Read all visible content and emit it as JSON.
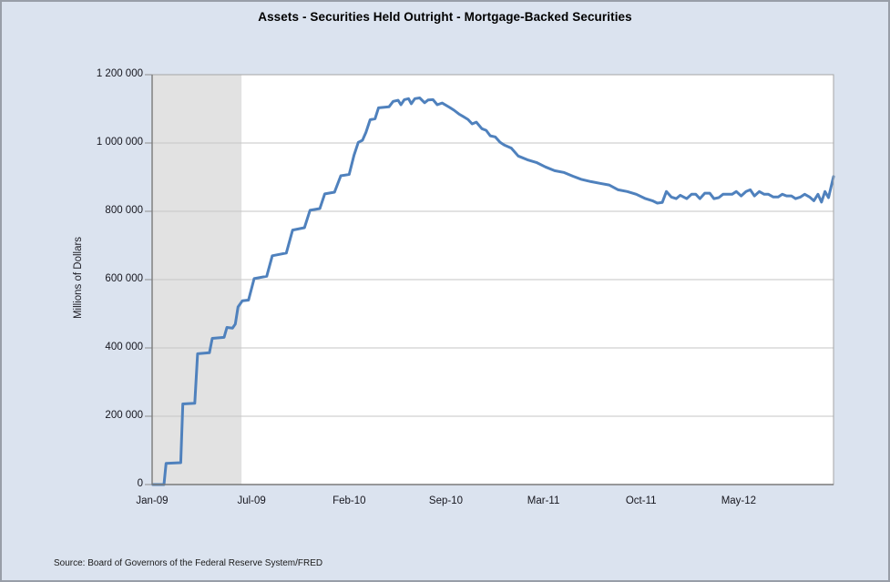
{
  "window": {
    "background_color": "#dbe3ef",
    "border_color": "#989ea8"
  },
  "source": {
    "text": "Source: Board of Governors of the Federal Reserve System/FRED"
  },
  "colors": {
    "series_line": "#4f81bd",
    "recession_band": "#e2e2e2",
    "gridline": "#c5c5c5",
    "plot_border": "#a5a5a5",
    "axis_line": "#7a7a7a",
    "tick_mark": "#8c8c8c",
    "plot_background": "#ffffff",
    "text": "#16161e"
  },
  "chart_data": {
    "type": "line",
    "title": "Assets - Securities Held Outright - Mortgage-Backed Securities",
    "xlabel": "",
    "ylabel": "Millions of Dollars",
    "ylim": [
      0,
      1200000
    ],
    "y_ticks": [
      0,
      200000,
      400000,
      600000,
      800000,
      1000000,
      1200000
    ],
    "y_tick_labels": [
      "0",
      "200 000",
      "400 000",
      "600 000",
      "800 000",
      "1 000 000",
      "1 200 000"
    ],
    "x_ticks": [
      {
        "pos": 0.0,
        "label": "Jan-09"
      },
      {
        "pos": 0.1459,
        "label": "Jul-09"
      },
      {
        "pos": 0.2892,
        "label": "Feb-10"
      },
      {
        "pos": 0.4311,
        "label": "Sep-10"
      },
      {
        "pos": 0.5743,
        "label": "Mar-11"
      },
      {
        "pos": 0.7175,
        "label": "Oct-11"
      },
      {
        "pos": 0.8608,
        "label": "May-12"
      }
    ],
    "x_axis_note": "weekly observations Jan-2009 through Dec-2012; pos = fraction of x-axis width",
    "grid": "horizontal",
    "legend": "none",
    "recession_band": {
      "pos_start": 0.0,
      "pos_end": 0.1312
    },
    "series": [
      {
        "name": "Mortgage-Backed Securities (millions of dollars)",
        "points": [
          [
            0.001,
            0
          ],
          [
            0.0174,
            0
          ],
          [
            0.0205,
            62000
          ],
          [
            0.042,
            64000
          ],
          [
            0.0451,
            236000
          ],
          [
            0.0626,
            238000
          ],
          [
            0.0667,
            383000
          ],
          [
            0.0841,
            386000
          ],
          [
            0.0882,
            428000
          ],
          [
            0.1056,
            431000
          ],
          [
            0.1097,
            460000
          ],
          [
            0.1179,
            458000
          ],
          [
            0.122,
            470000
          ],
          [
            0.1261,
            520000
          ],
          [
            0.1323,
            538000
          ],
          [
            0.1415,
            540000
          ],
          [
            0.1497,
            603000
          ],
          [
            0.1682,
            610000
          ],
          [
            0.1764,
            670000
          ],
          [
            0.1969,
            678000
          ],
          [
            0.2061,
            745000
          ],
          [
            0.2235,
            752000
          ],
          [
            0.2317,
            803000
          ],
          [
            0.2461,
            808000
          ],
          [
            0.2533,
            851000
          ],
          [
            0.2676,
            856000
          ],
          [
            0.2769,
            904000
          ],
          [
            0.2892,
            908000
          ],
          [
            0.2963,
            964000
          ],
          [
            0.3025,
            1002000
          ],
          [
            0.3087,
            1008000
          ],
          [
            0.3138,
            1031000
          ],
          [
            0.3199,
            1068000
          ],
          [
            0.3271,
            1071000
          ],
          [
            0.3322,
            1103000
          ],
          [
            0.3476,
            1106000
          ],
          [
            0.3538,
            1122000
          ],
          [
            0.361,
            1125000
          ],
          [
            0.3651,
            1112000
          ],
          [
            0.3702,
            1127000
          ],
          [
            0.3763,
            1130000
          ],
          [
            0.3804,
            1115000
          ],
          [
            0.3856,
            1130000
          ],
          [
            0.3927,
            1132000
          ],
          [
            0.3999,
            1118000
          ],
          [
            0.405,
            1126000
          ],
          [
            0.4122,
            1127000
          ],
          [
            0.4184,
            1112000
          ],
          [
            0.4256,
            1117000
          ],
          [
            0.4368,
            1104000
          ],
          [
            0.443,
            1096000
          ],
          [
            0.4502,
            1085000
          ],
          [
            0.4635,
            1069000
          ],
          [
            0.4696,
            1056000
          ],
          [
            0.4758,
            1061000
          ],
          [
            0.484,
            1042000
          ],
          [
            0.4902,
            1037000
          ],
          [
            0.4963,
            1021000
          ],
          [
            0.5035,
            1018000
          ],
          [
            0.5107,
            1002000
          ],
          [
            0.5168,
            994000
          ],
          [
            0.5271,
            985000
          ],
          [
            0.5373,
            962000
          ],
          [
            0.5507,
            951000
          ],
          [
            0.564,
            943000
          ],
          [
            0.5773,
            930000
          ],
          [
            0.5907,
            919000
          ],
          [
            0.604,
            914000
          ],
          [
            0.6173,
            903000
          ],
          [
            0.6306,
            893000
          ],
          [
            0.644,
            887000
          ],
          [
            0.6573,
            882000
          ],
          [
            0.6706,
            877000
          ],
          [
            0.684,
            863000
          ],
          [
            0.6973,
            858000
          ],
          [
            0.7106,
            850000
          ],
          [
            0.724,
            837000
          ],
          [
            0.7342,
            831000
          ],
          [
            0.7414,
            824000
          ],
          [
            0.7486,
            826000
          ],
          [
            0.7547,
            858000
          ],
          [
            0.7619,
            842000
          ],
          [
            0.7691,
            837000
          ],
          [
            0.7752,
            847000
          ],
          [
            0.7845,
            837000
          ],
          [
            0.7916,
            850000
          ],
          [
            0.7978,
            850000
          ],
          [
            0.8039,
            837000
          ],
          [
            0.8111,
            853000
          ],
          [
            0.8183,
            853000
          ],
          [
            0.8244,
            837000
          ],
          [
            0.8316,
            840000
          ],
          [
            0.8378,
            850000
          ],
          [
            0.845,
            850000
          ],
          [
            0.8511,
            850000
          ],
          [
            0.8573,
            858000
          ],
          [
            0.8644,
            845000
          ],
          [
            0.8716,
            858000
          ],
          [
            0.8778,
            863000
          ],
          [
            0.8839,
            845000
          ],
          [
            0.8911,
            858000
          ],
          [
            0.8983,
            850000
          ],
          [
            0.9044,
            850000
          ],
          [
            0.9116,
            842000
          ],
          [
            0.9188,
            842000
          ],
          [
            0.9249,
            850000
          ],
          [
            0.9311,
            845000
          ],
          [
            0.9383,
            845000
          ],
          [
            0.9444,
            837000
          ],
          [
            0.9516,
            842000
          ],
          [
            0.9577,
            850000
          ],
          [
            0.9649,
            842000
          ],
          [
            0.9711,
            831000
          ],
          [
            0.9772,
            850000
          ],
          [
            0.9824,
            827000
          ],
          [
            0.9875,
            858000
          ],
          [
            0.9926,
            840000
          ],
          [
            1.0,
            902000
          ]
        ]
      }
    ]
  }
}
